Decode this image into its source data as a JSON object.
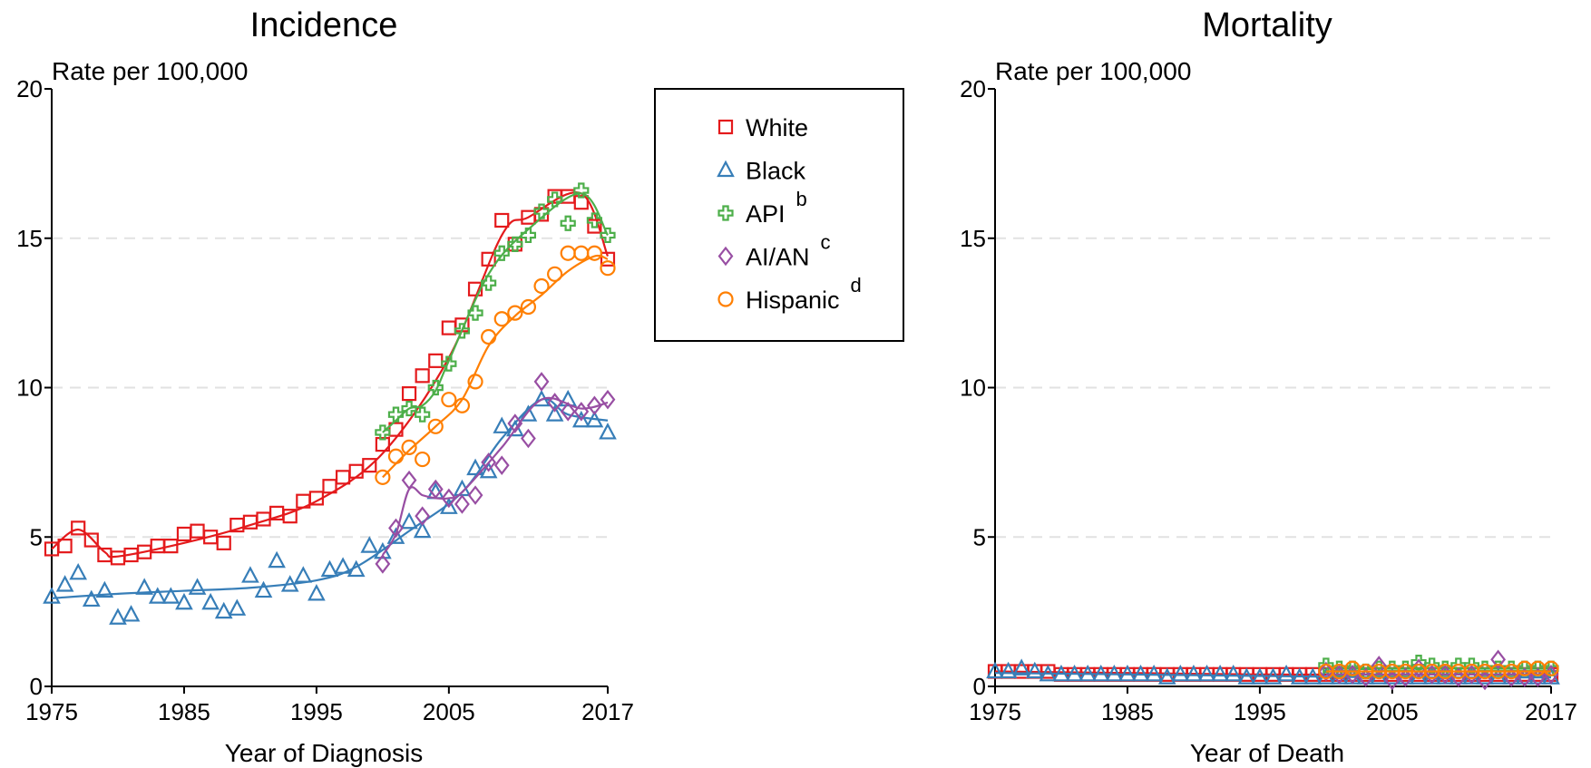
{
  "legend": {
    "entries": [
      {
        "label": "White",
        "sup": ""
      },
      {
        "label": "Black",
        "sup": ""
      },
      {
        "label": "API",
        "sup": "b"
      },
      {
        "label": "AI/AN",
        "sup": "c"
      },
      {
        "label": "Hispanic",
        "sup": "d"
      }
    ]
  },
  "colors": {
    "White": "#e41a1c",
    "Black": "#377eb8",
    "API": "#4daf4a",
    "AI/AN": "#984ea3",
    "Hispanic": "#ff7f00"
  },
  "chart_data": [
    {
      "type": "line",
      "title": "Incidence",
      "ylabel": "Rate per 100,000",
      "xlabel": "Year of Diagnosis",
      "xlim": [
        1975,
        2017
      ],
      "ylim": [
        0,
        20
      ],
      "xticks": [
        1975,
        1985,
        1995,
        2005,
        2017
      ],
      "yticks": [
        0,
        5,
        10,
        15,
        20
      ],
      "grid": "horizontal dashed",
      "series": [
        {
          "name": "White",
          "marker": "square",
          "x": [
            1975,
            1976,
            1977,
            1978,
            1979,
            1980,
            1981,
            1982,
            1983,
            1984,
            1985,
            1986,
            1987,
            1988,
            1989,
            1990,
            1991,
            1992,
            1993,
            1994,
            1995,
            1996,
            1997,
            1998,
            1999,
            2000,
            2001,
            2002,
            2003,
            2004,
            2005,
            2006,
            2007,
            2008,
            2009,
            2010,
            2011,
            2012,
            2013,
            2014,
            2015,
            2016,
            2017
          ],
          "values": [
            4.6,
            4.7,
            5.3,
            4.9,
            4.4,
            4.3,
            4.4,
            4.5,
            4.7,
            4.7,
            5.1,
            5.2,
            5.0,
            4.8,
            5.4,
            5.5,
            5.6,
            5.8,
            5.7,
            6.2,
            6.3,
            6.7,
            7.0,
            7.2,
            7.4,
            8.1,
            8.6,
            9.8,
            10.4,
            10.9,
            12.0,
            12.1,
            13.3,
            14.3,
            15.6,
            14.8,
            15.7,
            15.8,
            16.4,
            16.4,
            16.2,
            15.4,
            14.3
          ],
          "trend": [
            [
              1975,
              4.6
            ],
            [
              1977,
              5.25
            ],
            [
              1979,
              4.5
            ],
            [
              1980,
              4.35
            ],
            [
              1985,
              4.8
            ],
            [
              1990,
              5.4
            ],
            [
              1995,
              6.2
            ],
            [
              2000,
              7.8
            ],
            [
              2005,
              11.0
            ],
            [
              2009,
              15.1
            ],
            [
              2011,
              15.7
            ],
            [
              2015,
              16.5
            ],
            [
              2017,
              14.4
            ]
          ]
        },
        {
          "name": "Black",
          "marker": "triangle",
          "x": [
            1975,
            1976,
            1977,
            1978,
            1979,
            1980,
            1981,
            1982,
            1983,
            1984,
            1985,
            1986,
            1987,
            1988,
            1989,
            1990,
            1991,
            1992,
            1993,
            1994,
            1995,
            1996,
            1997,
            1998,
            1999,
            2000,
            2001,
            2002,
            2003,
            2004,
            2005,
            2006,
            2007,
            2008,
            2009,
            2010,
            2011,
            2012,
            2013,
            2014,
            2015,
            2016,
            2017
          ],
          "values": [
            3.0,
            3.4,
            3.8,
            2.9,
            3.2,
            2.3,
            2.4,
            3.3,
            3.0,
            3.0,
            2.8,
            3.3,
            2.8,
            2.5,
            2.6,
            3.7,
            3.2,
            4.2,
            3.4,
            3.7,
            3.1,
            3.9,
            4.0,
            3.9,
            4.7,
            4.5,
            5.0,
            5.5,
            5.2,
            6.5,
            6.0,
            6.6,
            7.3,
            7.2,
            8.7,
            8.6,
            9.1,
            9.6,
            9.1,
            9.6,
            8.9,
            8.9,
            8.5
          ],
          "trend": [
            [
              1975,
              2.95
            ],
            [
              1980,
              3.1
            ],
            [
              1985,
              3.2
            ],
            [
              1990,
              3.3
            ],
            [
              1995,
              3.55
            ],
            [
              1998,
              4.0
            ],
            [
              2002,
              5.2
            ],
            [
              2006,
              6.5
            ],
            [
              2009,
              8.3
            ],
            [
              2012,
              9.6
            ],
            [
              2014,
              9.1
            ],
            [
              2017,
              8.9
            ]
          ]
        },
        {
          "name": "API",
          "marker": "cross",
          "x": [
            2000,
            2001,
            2002,
            2003,
            2004,
            2005,
            2006,
            2007,
            2008,
            2009,
            2010,
            2011,
            2012,
            2013,
            2014,
            2015,
            2016,
            2017
          ],
          "values": [
            8.5,
            9.1,
            9.3,
            9.1,
            10.0,
            10.8,
            11.9,
            12.5,
            13.5,
            14.5,
            14.8,
            15.1,
            15.9,
            16.3,
            15.5,
            16.6,
            15.6,
            15.1
          ],
          "trend": [
            [
              2000,
              8.5
            ],
            [
              2001,
              8.9
            ],
            [
              2002,
              9.3
            ],
            [
              2003,
              9.4
            ],
            [
              2004,
              9.9
            ],
            [
              2005,
              10.9
            ],
            [
              2008,
              13.8
            ],
            [
              2011,
              15.3
            ],
            [
              2015,
              16.5
            ],
            [
              2017,
              15.1
            ]
          ]
        },
        {
          "name": "AI/AN",
          "marker": "diamond",
          "x": [
            2000,
            2001,
            2002,
            2003,
            2004,
            2005,
            2006,
            2007,
            2008,
            2009,
            2010,
            2011,
            2012,
            2013,
            2014,
            2015,
            2016,
            2017
          ],
          "values": [
            4.1,
            5.3,
            6.9,
            5.7,
            6.6,
            6.3,
            6.1,
            6.4,
            7.5,
            7.4,
            8.8,
            8.3,
            10.2,
            9.5,
            9.2,
            9.2,
            9.4,
            9.6
          ],
          "trend": [
            [
              2000,
              4.4
            ],
            [
              2001,
              5.1
            ],
            [
              2002,
              6.6
            ],
            [
              2003,
              6.4
            ],
            [
              2004,
              6.3
            ],
            [
              2005,
              6.3
            ],
            [
              2006,
              6.5
            ],
            [
              2009,
              8.0
            ],
            [
              2012,
              9.6
            ],
            [
              2015,
              9.3
            ],
            [
              2017,
              9.5
            ]
          ]
        },
        {
          "name": "Hispanic",
          "marker": "circle",
          "x": [
            2000,
            2001,
            2002,
            2003,
            2004,
            2005,
            2006,
            2007,
            2008,
            2009,
            2010,
            2011,
            2012,
            2013,
            2014,
            2015,
            2016,
            2017
          ],
          "values": [
            7.0,
            7.7,
            8.0,
            7.6,
            8.7,
            9.6,
            9.4,
            10.2,
            11.7,
            12.3,
            12.5,
            12.7,
            13.4,
            13.8,
            14.5,
            14.5,
            14.5,
            14.0
          ],
          "trend": [
            [
              2000,
              7.0
            ],
            [
              2002,
              7.9
            ],
            [
              2004,
              8.7
            ],
            [
              2006,
              9.6
            ],
            [
              2008,
              11.4
            ],
            [
              2010,
              12.4
            ],
            [
              2012,
              13.1
            ],
            [
              2014,
              13.9
            ],
            [
              2016,
              14.4
            ],
            [
              2017,
              14.3
            ]
          ]
        }
      ]
    },
    {
      "type": "line",
      "title": "Mortality",
      "ylabel": "Rate per 100,000",
      "xlabel": "Year of Death",
      "xlim": [
        1975,
        2017
      ],
      "ylim": [
        0,
        20
      ],
      "xticks": [
        1975,
        1985,
        1995,
        2005,
        2017
      ],
      "yticks": [
        0,
        5,
        10,
        15,
        20
      ],
      "grid": "horizontal dashed",
      "series": [
        {
          "name": "White",
          "marker": "square",
          "x": [
            1975,
            1976,
            1977,
            1978,
            1979,
            1980,
            1981,
            1982,
            1983,
            1984,
            1985,
            1986,
            1987,
            1988,
            1989,
            1990,
            1991,
            1992,
            1993,
            1994,
            1995,
            1996,
            1997,
            1998,
            1999,
            2000,
            2001,
            2002,
            2003,
            2004,
            2005,
            2006,
            2007,
            2008,
            2009,
            2010,
            2011,
            2012,
            2013,
            2014,
            2015,
            2016,
            2017
          ],
          "values": [
            0.5,
            0.5,
            0.5,
            0.5,
            0.5,
            0.4,
            0.4,
            0.4,
            0.4,
            0.4,
            0.4,
            0.4,
            0.4,
            0.4,
            0.4,
            0.4,
            0.4,
            0.4,
            0.4,
            0.4,
            0.4,
            0.4,
            0.4,
            0.4,
            0.4,
            0.4,
            0.4,
            0.4,
            0.4,
            0.4,
            0.4,
            0.4,
            0.4,
            0.4,
            0.4,
            0.4,
            0.4,
            0.4,
            0.4,
            0.4,
            0.4,
            0.4,
            0.4
          ],
          "trend": [
            [
              1975,
              0.5
            ],
            [
              1985,
              0.45
            ],
            [
              1995,
              0.4
            ],
            [
              2005,
              0.4
            ],
            [
              2017,
              0.4
            ]
          ]
        },
        {
          "name": "Black",
          "marker": "triangle",
          "x": [
            1975,
            1976,
            1977,
            1978,
            1979,
            1980,
            1981,
            1982,
            1983,
            1984,
            1985,
            1986,
            1987,
            1988,
            1989,
            1990,
            1991,
            1992,
            1993,
            1994,
            1995,
            1996,
            1997,
            1998,
            1999,
            2000,
            2001,
            2002,
            2003,
            2004,
            2005,
            2006,
            2007,
            2008,
            2009,
            2010,
            2011,
            2012,
            2013,
            2014,
            2015,
            2016,
            2017
          ],
          "values": [
            0.5,
            0.5,
            0.6,
            0.5,
            0.4,
            0.4,
            0.4,
            0.4,
            0.4,
            0.4,
            0.4,
            0.4,
            0.4,
            0.3,
            0.4,
            0.4,
            0.4,
            0.4,
            0.4,
            0.3,
            0.3,
            0.3,
            0.4,
            0.3,
            0.3,
            0.3,
            0.3,
            0.3,
            0.3,
            0.3,
            0.3,
            0.3,
            0.3,
            0.3,
            0.3,
            0.3,
            0.3,
            0.3,
            0.3,
            0.3,
            0.3,
            0.3,
            0.3
          ],
          "trend": [
            [
              1975,
              0.45
            ],
            [
              1985,
              0.4
            ],
            [
              1995,
              0.35
            ],
            [
              2005,
              0.3
            ],
            [
              2017,
              0.3
            ]
          ]
        },
        {
          "name": "API",
          "marker": "cross",
          "x": [
            2000,
            2001,
            2002,
            2003,
            2004,
            2005,
            2006,
            2007,
            2008,
            2009,
            2010,
            2011,
            2012,
            2013,
            2014,
            2015,
            2016,
            2017
          ],
          "values": [
            0.7,
            0.6,
            0.6,
            0.5,
            0.6,
            0.6,
            0.6,
            0.8,
            0.7,
            0.6,
            0.7,
            0.7,
            0.6,
            0.6,
            0.6,
            0.6,
            0.6,
            0.6
          ],
          "trend": [
            [
              2000,
              0.6
            ],
            [
              2017,
              0.6
            ]
          ]
        },
        {
          "name": "AI/AN",
          "marker": "diamond",
          "x": [
            2000,
            2001,
            2002,
            2003,
            2004,
            2005,
            2006,
            2007,
            2008,
            2009,
            2010,
            2011,
            2012,
            2013,
            2014,
            2015,
            2016,
            2017
          ],
          "values": [
            0.5,
            0.4,
            0.4,
            0.3,
            0.7,
            0.2,
            0.3,
            0.6,
            0.4,
            0.4,
            0.3,
            0.4,
            0.2,
            0.9,
            0.3,
            0.3,
            0.3,
            0.4
          ],
          "trend": [
            [
              2000,
              0.4
            ],
            [
              2017,
              0.4
            ]
          ]
        },
        {
          "name": "Hispanic",
          "marker": "circle",
          "x": [
            2000,
            2001,
            2002,
            2003,
            2004,
            2005,
            2006,
            2007,
            2008,
            2009,
            2010,
            2011,
            2012,
            2013,
            2014,
            2015,
            2016,
            2017
          ],
          "values": [
            0.5,
            0.5,
            0.6,
            0.5,
            0.5,
            0.5,
            0.5,
            0.5,
            0.5,
            0.5,
            0.5,
            0.5,
            0.5,
            0.5,
            0.5,
            0.6,
            0.6,
            0.6
          ],
          "trend": [
            [
              2000,
              0.5
            ],
            [
              2017,
              0.5
            ]
          ]
        }
      ]
    }
  ]
}
